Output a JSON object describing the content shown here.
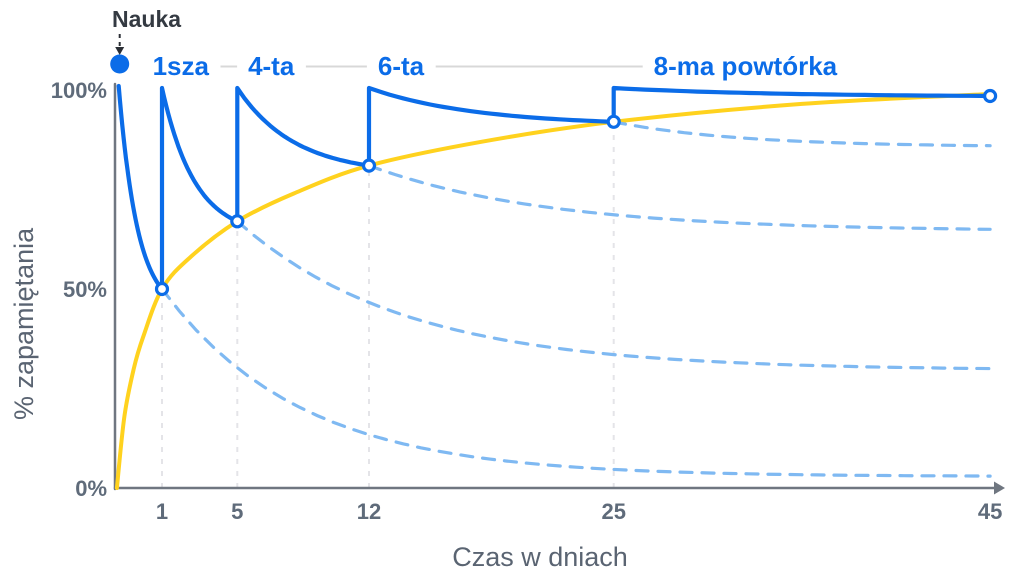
{
  "chart_data": {
    "type": "line",
    "xlabel": "Czas w dniach",
    "ylabel": "% zapamiętania",
    "xlim": [
      0,
      45
    ],
    "ylim": [
      0,
      100
    ],
    "x_ticks": [
      1,
      5,
      12,
      25,
      45
    ],
    "y_ticks": [
      {
        "value": 0,
        "label": "0%"
      },
      {
        "value": 50,
        "label": "50%"
      },
      {
        "value": 100,
        "label": "100%"
      }
    ],
    "grid_days": [
      1,
      5,
      12,
      25
    ],
    "grid_on": true,
    "legend": "none",
    "colors": {
      "review_curve": "#0B6CE8",
      "forgetting_dashed": "#7FB9F2",
      "retention_envelope": "#FFD21E",
      "grid": "#E4E4E8",
      "axis": "#6F7680",
      "tick_text": "#5F6B7A",
      "label_blue": "#0B6CE8",
      "nauka_text": "#343A42",
      "connector": "#D8D8D8"
    },
    "learning_event": {
      "label": "Nauka",
      "day": 0,
      "retention": 100
    },
    "review_labels": [
      {
        "label": "1sza",
        "day": 2.0
      },
      {
        "label": "4-ta",
        "day": 6.8
      },
      {
        "label": "6-ta",
        "day": 13.7
      },
      {
        "label": "8-ma powtórka",
        "day": 32
      }
    ],
    "series": [
      {
        "name": "krzywa powtórek",
        "type": "sawtooth",
        "color_key": "review_curve",
        "start": {
          "day": -1.3,
          "retention": 101
        },
        "peak_retention": 100.5,
        "decay_lambda": 2.3,
        "reviews": [
          {
            "day": 1,
            "retention": 50
          },
          {
            "day": 5,
            "retention": 67
          },
          {
            "day": 12,
            "retention": 81
          },
          {
            "day": 25,
            "retention": 92
          }
        ],
        "end": {
          "day": 45,
          "retention": 98.5
        }
      },
      {
        "name": "krzywa zapamiętania",
        "type": "envelope",
        "color_key": "retention_envelope",
        "points": [
          [
            -1.4,
            0
          ],
          [
            -1.0,
            18
          ],
          [
            -0.5,
            30
          ],
          [
            0,
            38
          ],
          [
            1,
            50
          ],
          [
            2.5,
            58
          ],
          [
            5,
            67
          ],
          [
            8,
            74
          ],
          [
            12,
            81
          ],
          [
            18,
            87
          ],
          [
            25,
            92
          ],
          [
            35,
            96.5
          ],
          [
            45,
            99
          ]
        ]
      },
      {
        "name": "krzywe zapominania",
        "type": "forgetting",
        "color_key": "forgetting_dashed",
        "curves": [
          {
            "from_day": 1,
            "from_retention": 50,
            "to_day": 45,
            "to_retention": 3,
            "lambda": 6
          },
          {
            "from_day": 5,
            "from_retention": 67,
            "to_day": 45,
            "to_retention": 30,
            "lambda": 4.5
          },
          {
            "from_day": 12,
            "from_retention": 81,
            "to_day": 45,
            "to_retention": 65,
            "lambda": 3.5
          },
          {
            "from_day": 25,
            "from_retention": 92,
            "to_day": 45,
            "to_retention": 86,
            "lambda": 3
          }
        ]
      }
    ],
    "markers": [
      {
        "day": 1,
        "retention": 50
      },
      {
        "day": 5,
        "retention": 67
      },
      {
        "day": 12,
        "retention": 81
      },
      {
        "day": 25,
        "retention": 92
      },
      {
        "day": 45,
        "retention": 98.5
      }
    ]
  }
}
